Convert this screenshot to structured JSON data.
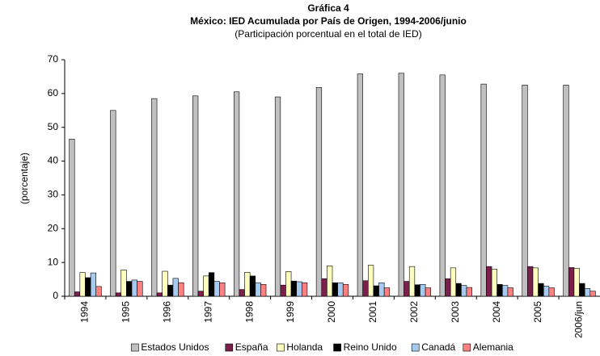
{
  "chart_data": {
    "type": "bar",
    "title": "Gráfica 4",
    "subtitle": "México: IED Acumulada por País de Origen, 1994-2006/junio",
    "note": "(Participación porcentual en el total de IED)",
    "y_label": "(porcentaje)",
    "categories": [
      "1994",
      "1995",
      "1996",
      "1997",
      "1998",
      "1999",
      "2000",
      "2001",
      "2002",
      "2003",
      "2004",
      "2005",
      "2006/jun"
    ],
    "series": [
      {
        "name": "Estados Unidos",
        "color": "#c0c0c0",
        "values": [
          46.5,
          55,
          58.5,
          59.3,
          60.5,
          59,
          61.8,
          65.8,
          66,
          65.5,
          62.8,
          62.5,
          62.5
        ]
      },
      {
        "name": "España",
        "color": "#7b1f4d",
        "values": [
          1.3,
          1.0,
          1.0,
          1.5,
          2.0,
          3.3,
          5.2,
          4.6,
          4.4,
          5.2,
          8.8,
          8.8,
          8.5
        ]
      },
      {
        "name": "Holanda",
        "color": "#ffffc0",
        "values": [
          7.0,
          7.8,
          7.4,
          6.0,
          7.1,
          7.3,
          9.0,
          9.2,
          8.8,
          8.4,
          8.0,
          8.4,
          8.3
        ]
      },
      {
        "name": "Reino Unido",
        "color": "#000000",
        "values": [
          5.5,
          4.4,
          3.3,
          7.0,
          6.0,
          4.5,
          4.0,
          3.1,
          3.4,
          3.8,
          3.5,
          3.8,
          3.8
        ]
      },
      {
        "name": "Canadá",
        "color": "#a6caf0",
        "values": [
          6.9,
          4.8,
          5.3,
          4.4,
          4.0,
          4.3,
          4.0,
          4.0,
          3.5,
          3.2,
          3.2,
          3.0,
          2.3
        ]
      },
      {
        "name": "Alemania",
        "color": "#ff8080",
        "values": [
          2.9,
          4.4,
          4.0,
          4.0,
          3.5,
          4.0,
          3.5,
          2.5,
          2.5,
          2.6,
          2.5,
          2.5,
          1.5
        ]
      }
    ],
    "ylim": [
      0,
      70
    ],
    "yticks": [
      0,
      10,
      20,
      30,
      40,
      50,
      60,
      70
    ]
  }
}
